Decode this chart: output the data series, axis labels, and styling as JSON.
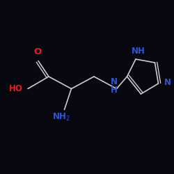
{
  "background_color": "#080810",
  "bond_color": "#cccccc",
  "label_O_color": "#dd2222",
  "label_HO_color": "#dd2222",
  "label_NH2_color": "#3355cc",
  "label_NH_color": "#3355cc",
  "label_N_color": "#3355cc",
  "bond_width": 1.2,
  "figsize": [
    2.5,
    2.5
  ],
  "dpi": 100,
  "xlim": [
    0,
    10
  ],
  "ylim": [
    1,
    9
  ]
}
